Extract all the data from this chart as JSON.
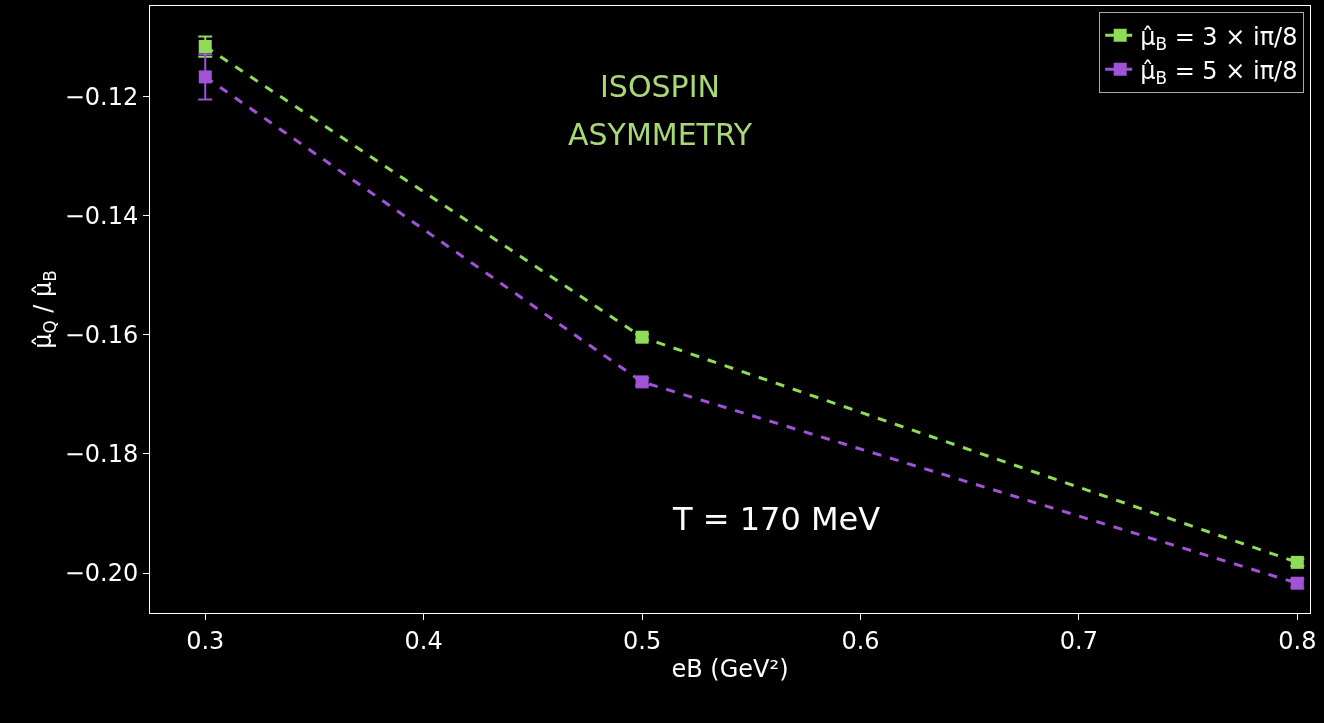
{
  "chart_data": {
    "type": "line",
    "xlabel": "eB (GeV²)",
    "ylabel": "μ̂$_{Q}$ / μ̂$_{B}$",
    "x": [
      0.3,
      0.5,
      0.8
    ],
    "series": [
      {
        "name": "μ̂$_{B}$ = 3 × iπ/8",
        "color": "#8fdc58",
        "values": [
          -0.1116,
          -0.1604,
          -0.1982
        ],
        "errors": [
          0.0017,
          0.0005,
          0.0006
        ]
      },
      {
        "name": "μ̂$_{B}$ = 5 × iπ/8",
        "color": "#a052d8",
        "values": [
          -0.1167,
          -0.1679,
          -0.2017
        ],
        "errors": [
          0.0038,
          0.0006,
          0.0007
        ]
      }
    ],
    "xlim": [
      0.2747,
      0.8058
    ],
    "xticks": [
      0.3,
      0.4,
      0.5,
      0.6,
      0.7,
      0.8
    ],
    "ylim": [
      -0.2067,
      -0.1048
    ],
    "yticks": [
      {
        "value": -0.12,
        "label": "−0.12"
      },
      {
        "value": -0.14,
        "label": "−0.14"
      },
      {
        "value": -0.16,
        "label": "−0.16"
      },
      {
        "value": -0.18,
        "label": "−0.18"
      },
      {
        "value": -0.2,
        "label": "−0.20"
      }
    ],
    "annotations": [
      "ISOSPIN",
      "ASYMMETRY",
      "T = 170 MeV"
    ],
    "marker": "square",
    "line_style": "dashed",
    "legend": "top right",
    "grid": false
  }
}
